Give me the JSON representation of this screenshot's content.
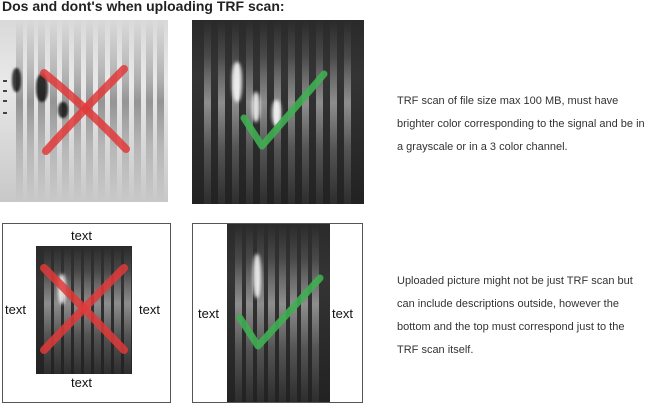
{
  "title": "Dos and dont's when uploading TRF scan:",
  "top_row": {
    "description": "TRF scan of file size max 100 MB, must have brighter color corresponding to the signal and be in a grayscale or in a 3 color channel.",
    "bad_icon": "red-x-icon",
    "good_icon": "green-check-icon"
  },
  "bottom_row": {
    "description": "Uploaded picture might not be just TRF scan but can include descriptions outside, however the bottom and the top must correspond just to the TRF scan itself.",
    "bad_labels": {
      "top": "text",
      "bottom": "text",
      "left": "text",
      "right": "text"
    },
    "good_labels": {
      "left": "text",
      "right": "text"
    },
    "bad_icon": "red-x-icon",
    "good_icon": "green-check-icon"
  },
  "colors": {
    "cross": "#e03a3a",
    "check": "#3fae52"
  }
}
